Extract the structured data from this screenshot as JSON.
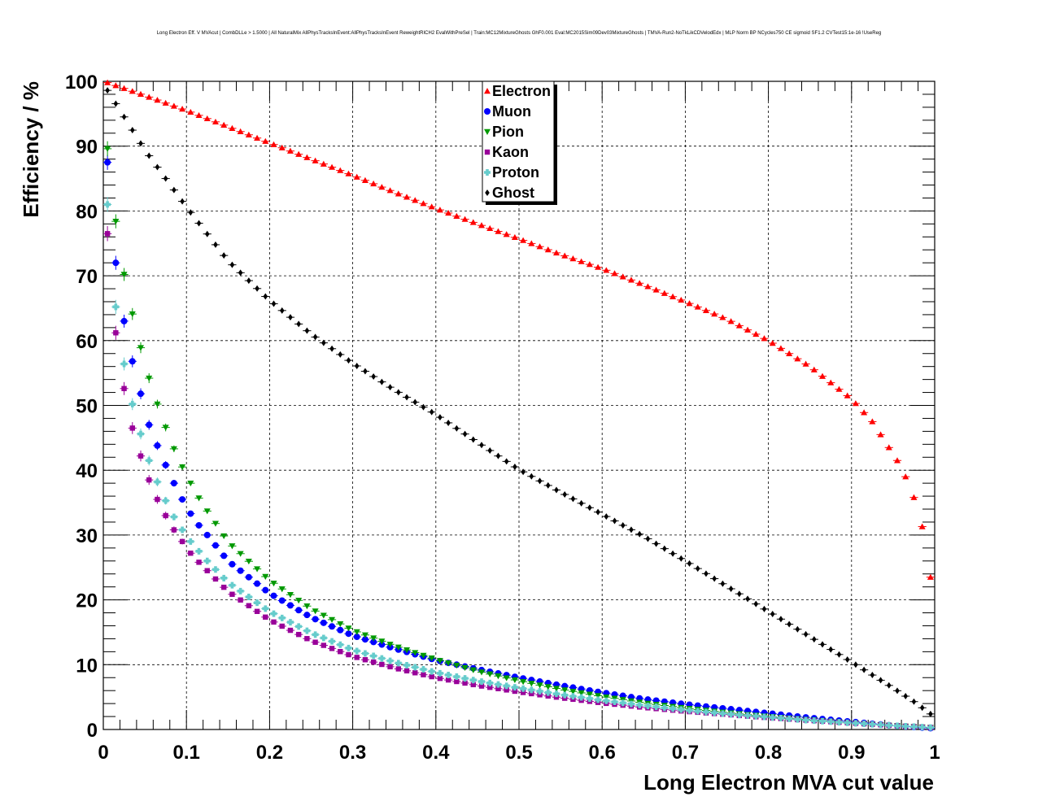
{
  "chart_data": {
    "type": "scatter",
    "title": "Long Electron Eff. V MVAcut | CombDLLe > 1.5000 | All NaturalMix AllPhysTracksInEvent:AllPhysTracksInEvent ReweightRICH2 EvalWithPreSel | Train:MC12MixtureGhosts GhF0.001 Eval:MC2015Sim09Dev03MixtureGhosts | TMVA-Run2-NoTkLikCDVelodEdx | MLP Norm BP NCycles750 CE sigmoid SF1.2 CVTest15:1e-16 !UseReg",
    "xlabel": "Long Electron MVA cut value",
    "ylabel": "Efficiency / %",
    "xlim": [
      0,
      1
    ],
    "ylim": [
      0,
      100
    ],
    "xticks": [
      "0",
      "0.1",
      "0.2",
      "0.3",
      "0.4",
      "0.5",
      "0.6",
      "0.7",
      "0.8",
      "0.9",
      "1"
    ],
    "yticks": [
      "0",
      "10",
      "20",
      "30",
      "40",
      "50",
      "60",
      "70",
      "80",
      "90",
      "100"
    ],
    "grid": true,
    "legend_position": "top-center",
    "series": [
      {
        "name": "Electron",
        "color": "#ff0000",
        "marker": "triangle-up",
        "points": [
          [
            0.005,
            99.8
          ],
          [
            0.05,
            97.8
          ],
          [
            0.1,
            95.5
          ],
          [
            0.15,
            93.0
          ],
          [
            0.2,
            90.5
          ],
          [
            0.25,
            88.0
          ],
          [
            0.3,
            85.5
          ],
          [
            0.35,
            82.9
          ],
          [
            0.4,
            80.4
          ],
          [
            0.45,
            78.0
          ],
          [
            0.5,
            75.7
          ],
          [
            0.55,
            73.3
          ],
          [
            0.6,
            71.1
          ],
          [
            0.65,
            68.6
          ],
          [
            0.7,
            66.0
          ],
          [
            0.75,
            63.3
          ],
          [
            0.8,
            60.0
          ],
          [
            0.85,
            56.0
          ],
          [
            0.9,
            51.0
          ],
          [
            0.925,
            47.5
          ],
          [
            0.945,
            43.5
          ],
          [
            0.955,
            41.5
          ],
          [
            0.965,
            39.0
          ],
          [
            0.975,
            35.8
          ],
          [
            0.985,
            31.3
          ],
          [
            0.995,
            23.5
          ]
        ]
      },
      {
        "name": "Muon",
        "color": "#0000ff",
        "marker": "circle",
        "points": [
          [
            0.005,
            87.5
          ],
          [
            0.015,
            72.0
          ],
          [
            0.025,
            63.0
          ],
          [
            0.035,
            56.8
          ],
          [
            0.045,
            51.8
          ],
          [
            0.055,
            47.0
          ],
          [
            0.065,
            43.8
          ],
          [
            0.075,
            40.8
          ],
          [
            0.085,
            38.0
          ],
          [
            0.095,
            35.5
          ],
          [
            0.105,
            33.3
          ],
          [
            0.115,
            31.5
          ],
          [
            0.125,
            30.0
          ],
          [
            0.15,
            26.0
          ],
          [
            0.2,
            21.0
          ],
          [
            0.25,
            17.3
          ],
          [
            0.3,
            14.5
          ],
          [
            0.35,
            12.5
          ],
          [
            0.4,
            10.7
          ],
          [
            0.45,
            9.3
          ],
          [
            0.5,
            8.0
          ],
          [
            0.55,
            6.8
          ],
          [
            0.6,
            5.7
          ],
          [
            0.65,
            4.7
          ],
          [
            0.7,
            3.9
          ],
          [
            0.75,
            3.2
          ],
          [
            0.8,
            2.5
          ],
          [
            0.85,
            1.8
          ],
          [
            0.9,
            1.2
          ],
          [
            0.95,
            0.6
          ],
          [
            0.995,
            0.2
          ]
        ]
      },
      {
        "name": "Pion",
        "color": "#009900",
        "marker": "triangle-down",
        "points": [
          [
            0.005,
            89.6
          ],
          [
            0.015,
            78.4
          ],
          [
            0.025,
            70.2
          ],
          [
            0.035,
            64.1
          ],
          [
            0.045,
            58.9
          ],
          [
            0.055,
            54.2
          ],
          [
            0.065,
            50.2
          ],
          [
            0.075,
            46.6
          ],
          [
            0.085,
            43.3
          ],
          [
            0.095,
            40.5
          ],
          [
            0.105,
            38.0
          ],
          [
            0.115,
            35.7
          ],
          [
            0.125,
            33.7
          ],
          [
            0.15,
            28.9
          ],
          [
            0.2,
            23.0
          ],
          [
            0.25,
            18.6
          ],
          [
            0.3,
            15.3
          ],
          [
            0.35,
            12.9
          ],
          [
            0.4,
            10.8
          ],
          [
            0.45,
            9.0
          ],
          [
            0.5,
            7.5
          ],
          [
            0.55,
            6.2
          ],
          [
            0.6,
            5.1
          ],
          [
            0.65,
            4.1
          ],
          [
            0.7,
            3.3
          ],
          [
            0.75,
            2.6
          ],
          [
            0.8,
            2.0
          ],
          [
            0.85,
            1.5
          ],
          [
            0.9,
            1.0
          ],
          [
            0.95,
            0.6
          ],
          [
            0.995,
            0.3
          ]
        ]
      },
      {
        "name": "Kaon",
        "color": "#990099",
        "marker": "square",
        "points": [
          [
            0.005,
            76.5
          ],
          [
            0.015,
            61.2
          ],
          [
            0.025,
            52.6
          ],
          [
            0.035,
            46.5
          ],
          [
            0.045,
            42.2
          ],
          [
            0.055,
            38.5
          ],
          [
            0.065,
            35.5
          ],
          [
            0.075,
            33.0
          ],
          [
            0.085,
            30.8
          ],
          [
            0.095,
            29.0
          ],
          [
            0.105,
            27.2
          ],
          [
            0.115,
            25.8
          ],
          [
            0.125,
            24.5
          ],
          [
            0.15,
            21.3
          ],
          [
            0.2,
            16.9
          ],
          [
            0.25,
            13.7
          ],
          [
            0.3,
            11.3
          ],
          [
            0.35,
            9.5
          ],
          [
            0.4,
            8.0
          ],
          [
            0.45,
            6.8
          ],
          [
            0.5,
            5.8
          ],
          [
            0.55,
            4.9
          ],
          [
            0.6,
            4.1
          ],
          [
            0.65,
            3.4
          ],
          [
            0.7,
            2.8
          ],
          [
            0.75,
            2.3
          ],
          [
            0.8,
            1.8
          ],
          [
            0.85,
            1.4
          ],
          [
            0.9,
            1.0
          ],
          [
            0.95,
            0.6
          ],
          [
            0.995,
            0.3
          ]
        ]
      },
      {
        "name": "Proton",
        "color": "#66cccc",
        "marker": "cross",
        "points": [
          [
            0.005,
            81.0
          ],
          [
            0.015,
            65.2
          ],
          [
            0.025,
            56.4
          ],
          [
            0.035,
            50.2
          ],
          [
            0.045,
            45.6
          ],
          [
            0.055,
            41.5
          ],
          [
            0.065,
            38.2
          ],
          [
            0.075,
            35.3
          ],
          [
            0.085,
            32.8
          ],
          [
            0.095,
            30.8
          ],
          [
            0.105,
            29.0
          ],
          [
            0.115,
            27.5
          ],
          [
            0.125,
            26.0
          ],
          [
            0.15,
            22.7
          ],
          [
            0.2,
            18.2
          ],
          [
            0.25,
            14.9
          ],
          [
            0.3,
            12.3
          ],
          [
            0.35,
            10.4
          ],
          [
            0.4,
            8.8
          ],
          [
            0.45,
            7.5
          ],
          [
            0.5,
            6.4
          ],
          [
            0.55,
            5.4
          ],
          [
            0.6,
            4.5
          ],
          [
            0.65,
            3.7
          ],
          [
            0.7,
            3.0
          ],
          [
            0.75,
            2.4
          ],
          [
            0.8,
            1.9
          ],
          [
            0.85,
            1.4
          ],
          [
            0.9,
            1.0
          ],
          [
            0.95,
            0.6
          ],
          [
            0.995,
            0.3
          ]
        ]
      },
      {
        "name": "Ghost",
        "color": "#000000",
        "marker": "diamond",
        "points": [
          [
            0.005,
            98.6
          ],
          [
            0.05,
            89.4
          ],
          [
            0.1,
            80.6
          ],
          [
            0.15,
            72.3
          ],
          [
            0.2,
            66.2
          ],
          [
            0.25,
            61.0
          ],
          [
            0.3,
            56.5
          ],
          [
            0.35,
            52.4
          ],
          [
            0.4,
            48.6
          ],
          [
            0.45,
            44.3
          ],
          [
            0.5,
            40.1
          ],
          [
            0.55,
            36.6
          ],
          [
            0.6,
            33.2
          ],
          [
            0.65,
            29.8
          ],
          [
            0.7,
            26.0
          ],
          [
            0.75,
            22.1
          ],
          [
            0.8,
            18.2
          ],
          [
            0.85,
            14.3
          ],
          [
            0.9,
            10.4
          ],
          [
            0.95,
            6.4
          ],
          [
            0.975,
            4.3
          ],
          [
            0.995,
            2.4
          ]
        ]
      }
    ]
  }
}
